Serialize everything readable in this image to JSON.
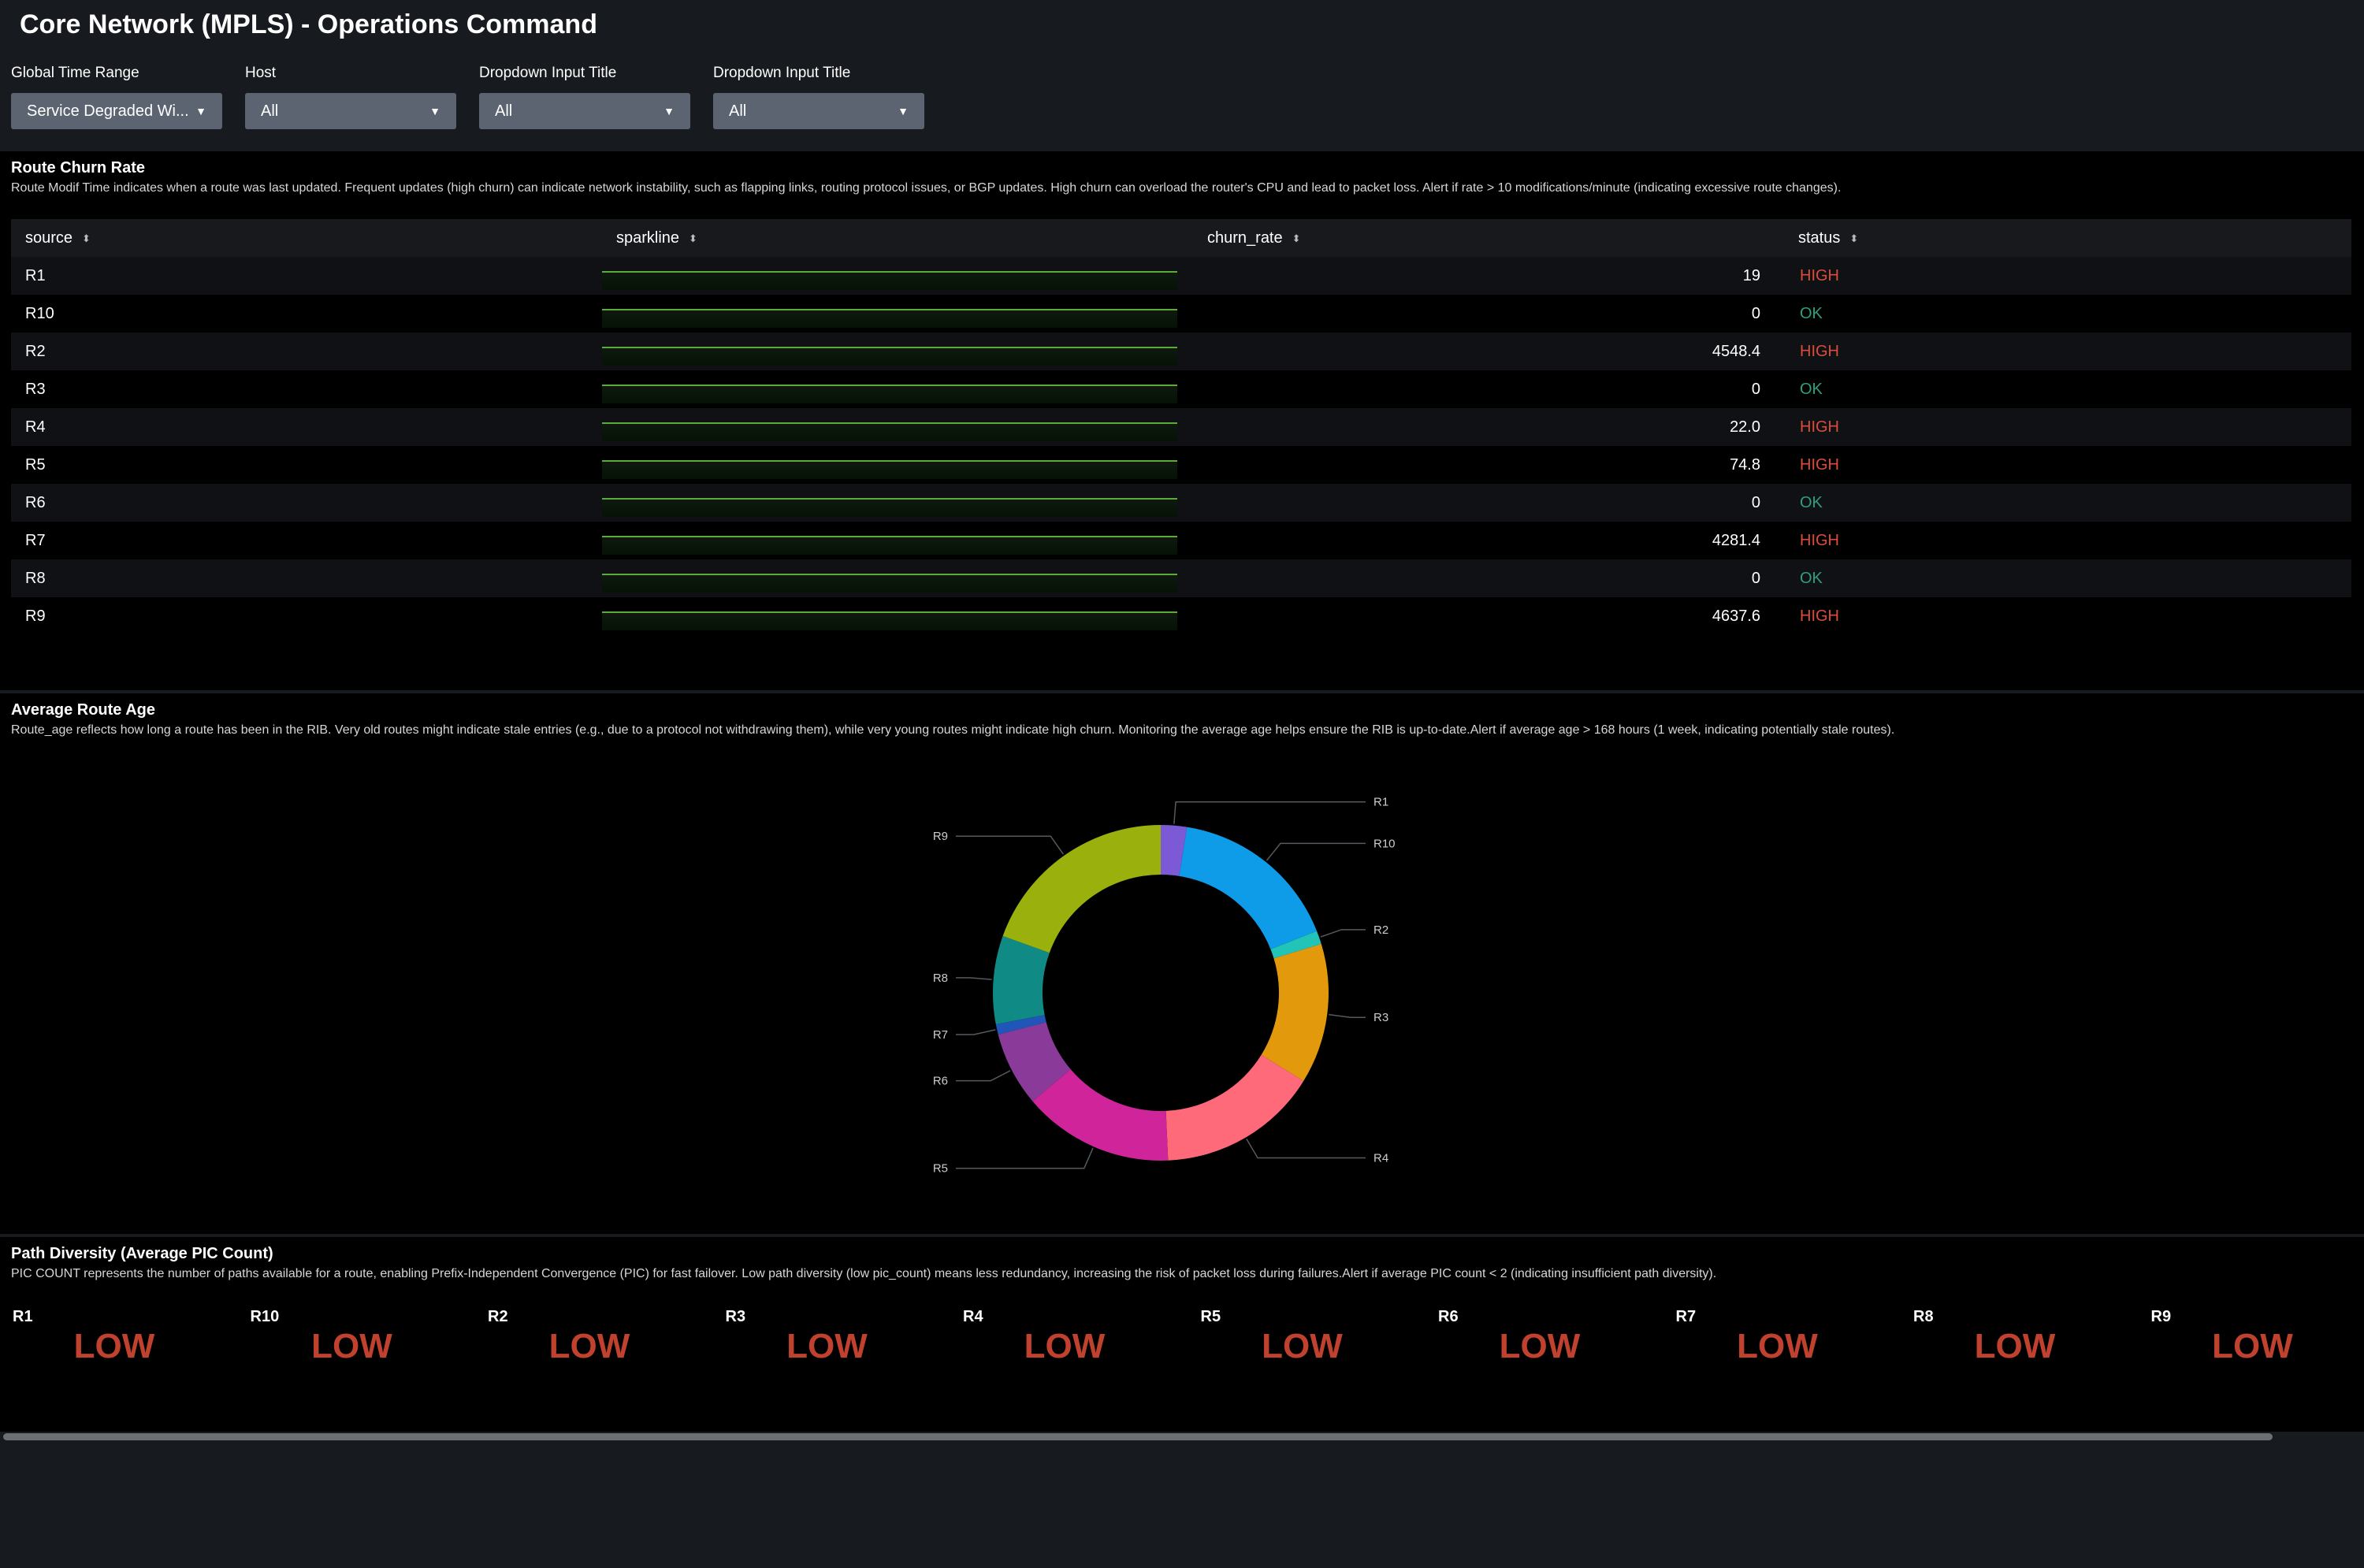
{
  "header": {
    "title": "Core Network (MPLS) - Operations Command",
    "inputs": [
      {
        "label": "Global Time Range",
        "value": "Service Degraded Wi..."
      },
      {
        "label": "Host",
        "value": "All"
      },
      {
        "label": "Dropdown Input Title",
        "value": "All"
      },
      {
        "label": "Dropdown Input Title",
        "value": "All"
      }
    ]
  },
  "churn": {
    "title": "Route Churn Rate",
    "description": "Route Modif Time indicates when a route was last updated. Frequent updates (high churn) can indicate network instability, such as flapping links, routing protocol issues, or BGP updates. High churn can overload the router's CPU and lead to packet loss. Alert if rate > 10 modifications/minute (indicating excessive route changes).",
    "columns": [
      "source",
      "sparkline",
      "churn_rate",
      "status"
    ],
    "rows": [
      {
        "source": "R1",
        "churn_rate": "19",
        "status": "HIGH"
      },
      {
        "source": "R10",
        "churn_rate": "0",
        "status": "OK"
      },
      {
        "source": "R2",
        "churn_rate": "4548.4",
        "status": "HIGH"
      },
      {
        "source": "R3",
        "churn_rate": "0",
        "status": "OK"
      },
      {
        "source": "R4",
        "churn_rate": "22.0",
        "status": "HIGH"
      },
      {
        "source": "R5",
        "churn_rate": "74.8",
        "status": "HIGH"
      },
      {
        "source": "R6",
        "churn_rate": "0",
        "status": "OK"
      },
      {
        "source": "R7",
        "churn_rate": "4281.4",
        "status": "HIGH"
      },
      {
        "source": "R8",
        "churn_rate": "0",
        "status": "OK"
      },
      {
        "source": "R9",
        "churn_rate": "4637.6",
        "status": "HIGH"
      }
    ],
    "colors": {
      "high": "#d94e3a",
      "ok": "#2ea07a",
      "sparkline": "#5fa83b"
    }
  },
  "route_age": {
    "title": "Average Route Age",
    "description": "Route_age reflects how long a route has been in the RIB. Very old routes might indicate stale entries (e.g., due to a protocol not withdrawing them), while very young routes might indicate high churn. Monitoring the average age helps ensure the RIB is up-to-date.Alert if average age > 168 hours (1 week, indicating potentially stale routes).",
    "chart_data": {
      "type": "pie",
      "title": "",
      "categories": [
        "R1",
        "R10",
        "R2",
        "R3",
        "R4",
        "R5",
        "R6",
        "R7",
        "R8",
        "R9"
      ],
      "values": [
        2.5,
        16.5,
        1.3,
        13.5,
        15.5,
        14.5,
        7.2,
        1.0,
        8.5,
        19.5
      ],
      "colors": [
        "#7c5ad6",
        "#0e9be8",
        "#22c4b8",
        "#e29a0c",
        "#ff6a7a",
        "#d0259a",
        "#8a3b9a",
        "#1f56b8",
        "#0f8a84",
        "#9ab00c"
      ],
      "donut": true
    }
  },
  "pic": {
    "title": "Path Diversity (Average PIC Count)",
    "description": "PIC COUNT represents the number of paths available for a route, enabling Prefix-Independent Convergence (PIC) for fast failover. Low path diversity (low pic_count) means less redundancy, increasing the risk of packet loss during failures.Alert if average PIC count < 2 (indicating insufficient path diversity).",
    "items": [
      {
        "name": "R1",
        "value": "LOW"
      },
      {
        "name": "R10",
        "value": "LOW"
      },
      {
        "name": "R2",
        "value": "LOW"
      },
      {
        "name": "R3",
        "value": "LOW"
      },
      {
        "name": "R4",
        "value": "LOW"
      },
      {
        "name": "R5",
        "value": "LOW"
      },
      {
        "name": "R6",
        "value": "LOW"
      },
      {
        "name": "R7",
        "value": "LOW"
      },
      {
        "name": "R8",
        "value": "LOW"
      },
      {
        "name": "R9",
        "value": "LOW"
      }
    ]
  },
  "icons": {
    "dropdown_caret": "caret-down-icon",
    "sort": "sort-icon"
  }
}
